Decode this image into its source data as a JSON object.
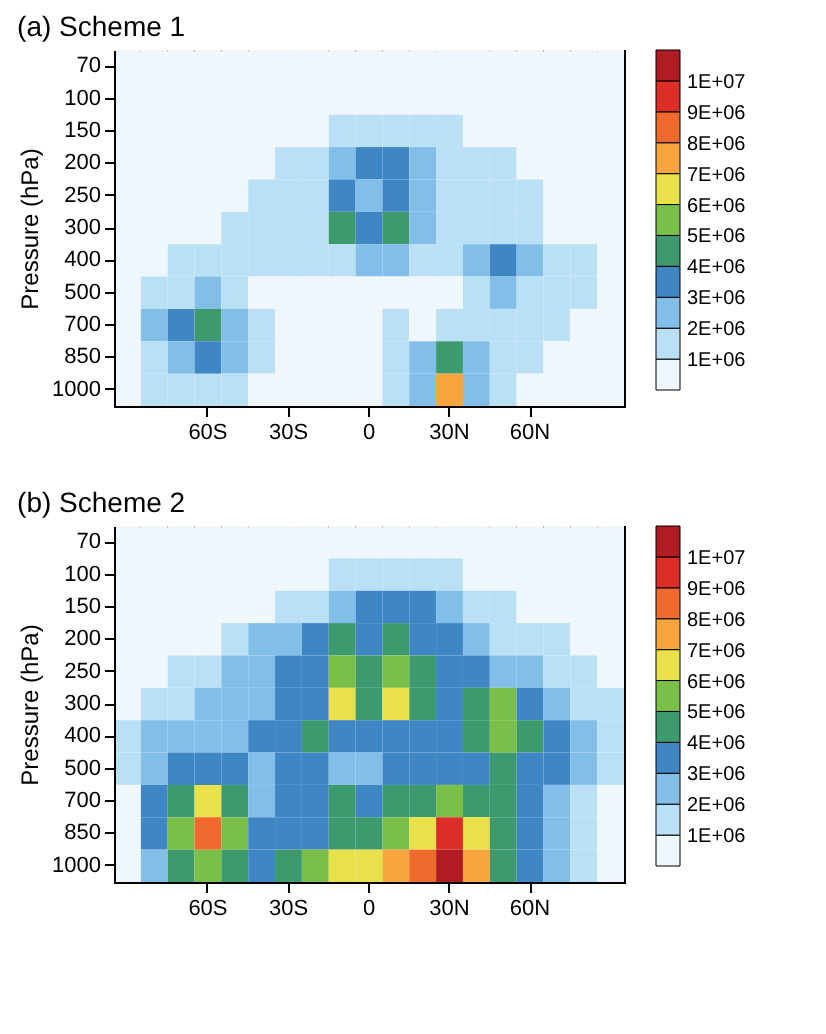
{
  "chart_data": [
    {
      "type": "heatmap",
      "title": "(a) Scheme 1",
      "ylabel": "Pressure (hPa)",
      "categories": [
        null,
        null,
        null,
        "60S",
        null,
        null,
        "30S",
        null,
        null,
        "0",
        null,
        null,
        "30N",
        null,
        null,
        "60N",
        null,
        null,
        null
      ],
      "y_categories": [
        "70",
        "100",
        "150",
        "200",
        "250",
        "300",
        "400",
        "500",
        "700",
        "850",
        "1000"
      ],
      "cells": [
        [
          500000,
          500000,
          500000,
          500000,
          500000,
          500000,
          500000,
          500000,
          500000,
          500000,
          500000,
          500000,
          500000,
          500000,
          500000,
          500000,
          500000,
          500000,
          500000
        ],
        [
          500000,
          500000,
          500000,
          500000,
          500000,
          500000,
          500000,
          500000,
          500000,
          500000,
          500000,
          500000,
          500000,
          500000,
          500000,
          500000,
          500000,
          500000,
          500000
        ],
        [
          500000,
          500000,
          500000,
          500000,
          500000,
          500000,
          500000,
          500000,
          1500000,
          1500000,
          1500000,
          1500000,
          1500000,
          500000,
          500000,
          500000,
          500000,
          500000,
          500000
        ],
        [
          500000,
          500000,
          500000,
          500000,
          500000,
          500000,
          1500000,
          1500000,
          2500000,
          3500000,
          3500000,
          2500000,
          1500000,
          1500000,
          1500000,
          500000,
          500000,
          500000,
          500000
        ],
        [
          500000,
          500000,
          500000,
          500000,
          500000,
          1500000,
          1500000,
          1500000,
          3500000,
          2500000,
          3500000,
          2500000,
          1500000,
          1500000,
          1500000,
          1500000,
          500000,
          500000,
          500000
        ],
        [
          500000,
          500000,
          500000,
          500000,
          1500000,
          1500000,
          1500000,
          1500000,
          4500000,
          3500000,
          4500000,
          2500000,
          1500000,
          1500000,
          1500000,
          1500000,
          500000,
          500000,
          500000
        ],
        [
          500000,
          500000,
          1500000,
          1500000,
          1500000,
          1500000,
          1500000,
          1500000,
          1500000,
          2500000,
          2500000,
          1500000,
          1500000,
          2500000,
          3500000,
          2500000,
          1500000,
          1500000,
          500000
        ],
        [
          500000,
          1500000,
          1500000,
          2500000,
          1500000,
          500000,
          500000,
          500000,
          500000,
          500000,
          500000,
          500000,
          500000,
          1500000,
          2500000,
          1500000,
          1500000,
          1500000,
          500000
        ],
        [
          500000,
          2500000,
          3500000,
          4500000,
          2500000,
          1500000,
          500000,
          500000,
          500000,
          500000,
          1500000,
          500000,
          1500000,
          1500000,
          1500000,
          1500000,
          1500000,
          500000,
          500000
        ],
        [
          500000,
          1500000,
          2500000,
          3500000,
          2500000,
          1500000,
          500000,
          500000,
          500000,
          500000,
          1500000,
          2500000,
          4500000,
          2500000,
          1500000,
          1500000,
          500000,
          500000,
          500000
        ],
        [
          500000,
          1500000,
          1500000,
          1500000,
          1500000,
          500000,
          500000,
          500000,
          500000,
          500000,
          1500000,
          2500000,
          7500000,
          2500000,
          1500000,
          500000,
          500000,
          500000,
          500000
        ]
      ],
      "clim": [
        0,
        11000000
      ],
      "cticks": [
        {
          "value": 1000000,
          "label": "1E+06"
        },
        {
          "value": 2000000,
          "label": "2E+06"
        },
        {
          "value": 3000000,
          "label": "3E+06"
        },
        {
          "value": 4000000,
          "label": "4E+06"
        },
        {
          "value": 5000000,
          "label": "5E+06"
        },
        {
          "value": 6000000,
          "label": "6E+06"
        },
        {
          "value": 7000000,
          "label": "7E+06"
        },
        {
          "value": 8000000,
          "label": "8E+06"
        },
        {
          "value": 9000000,
          "label": "9E+06"
        },
        {
          "value": 10000000,
          "label": "1E+07"
        }
      ],
      "colors": [
        "#f0f7fc",
        "#b9e0f4",
        "#82bfe8",
        "#3f86c5",
        "#3c9a6e",
        "#79bf48",
        "#e8e14a",
        "#f7a53c",
        "#ef6a2c",
        "#dd2d27",
        "#b01c22"
      ]
    },
    {
      "type": "heatmap",
      "title": "(b) Scheme 2",
      "ylabel": "Pressure (hPa)",
      "categories": [
        null,
        null,
        null,
        "60S",
        null,
        null,
        "30S",
        null,
        null,
        "0",
        null,
        null,
        "30N",
        null,
        null,
        "60N",
        null,
        null,
        null
      ],
      "y_categories": [
        "70",
        "100",
        "150",
        "200",
        "250",
        "300",
        "400",
        "500",
        "700",
        "850",
        "1000"
      ],
      "cells": [
        [
          500000,
          500000,
          500000,
          500000,
          500000,
          500000,
          500000,
          500000,
          500000,
          500000,
          500000,
          500000,
          500000,
          500000,
          500000,
          500000,
          500000,
          500000,
          500000
        ],
        [
          500000,
          500000,
          500000,
          500000,
          500000,
          500000,
          500000,
          500000,
          1500000,
          1500000,
          1500000,
          1500000,
          1500000,
          500000,
          500000,
          500000,
          500000,
          500000,
          500000
        ],
        [
          500000,
          500000,
          500000,
          500000,
          500000,
          500000,
          1500000,
          1500000,
          2500000,
          3500000,
          3500000,
          3500000,
          2500000,
          1500000,
          1500000,
          500000,
          500000,
          500000,
          500000
        ],
        [
          500000,
          500000,
          500000,
          500000,
          1500000,
          2500000,
          2500000,
          3500000,
          4500000,
          3500000,
          4500000,
          3500000,
          3500000,
          2500000,
          1500000,
          1500000,
          1500000,
          500000,
          500000
        ],
        [
          500000,
          500000,
          1500000,
          1500000,
          2500000,
          2500000,
          3500000,
          3500000,
          5500000,
          4500000,
          5500000,
          4500000,
          3500000,
          3500000,
          2500000,
          2500000,
          1500000,
          1500000,
          500000
        ],
        [
          500000,
          1500000,
          1500000,
          2500000,
          2500000,
          2500000,
          3500000,
          3500000,
          6500000,
          4500000,
          6500000,
          4500000,
          3500000,
          4500000,
          5500000,
          3500000,
          2500000,
          1500000,
          1500000
        ],
        [
          1500000,
          2500000,
          2500000,
          2500000,
          2500000,
          3500000,
          3500000,
          4500000,
          3500000,
          3500000,
          3500000,
          3500000,
          3500000,
          4500000,
          5500000,
          4500000,
          3500000,
          2500000,
          1500000
        ],
        [
          1500000,
          2500000,
          3500000,
          3500000,
          3500000,
          2500000,
          3500000,
          3500000,
          2500000,
          2500000,
          3500000,
          3500000,
          3500000,
          3500000,
          4500000,
          3500000,
          3500000,
          2500000,
          1500000
        ],
        [
          500000,
          3500000,
          4500000,
          6500000,
          4500000,
          2500000,
          3500000,
          3500000,
          4500000,
          3500000,
          4500000,
          4500000,
          5500000,
          4500000,
          4500000,
          3500000,
          2500000,
          1500000,
          500000
        ],
        [
          500000,
          3500000,
          5500000,
          8500000,
          5500000,
          3500000,
          3500000,
          3500000,
          4500000,
          4500000,
          5500000,
          6500000,
          9500000,
          6500000,
          4500000,
          3500000,
          2500000,
          1500000,
          500000
        ],
        [
          500000,
          2500000,
          4500000,
          5500000,
          4500000,
          3500000,
          4500000,
          5500000,
          6500000,
          6500000,
          7500000,
          8500000,
          10500000,
          7500000,
          4500000,
          3500000,
          2500000,
          1500000,
          500000
        ]
      ],
      "clim": [
        0,
        11000000
      ],
      "cticks": [
        {
          "value": 1000000,
          "label": "1E+06"
        },
        {
          "value": 2000000,
          "label": "2E+06"
        },
        {
          "value": 3000000,
          "label": "3E+06"
        },
        {
          "value": 4000000,
          "label": "4E+06"
        },
        {
          "value": 5000000,
          "label": "5E+06"
        },
        {
          "value": 6000000,
          "label": "6E+06"
        },
        {
          "value": 7000000,
          "label": "7E+06"
        },
        {
          "value": 8000000,
          "label": "8E+06"
        },
        {
          "value": 9000000,
          "label": "9E+06"
        },
        {
          "value": 10000000,
          "label": "1E+07"
        }
      ],
      "colors": [
        "#f0f7fc",
        "#b9e0f4",
        "#82bfe8",
        "#3f86c5",
        "#3c9a6e",
        "#79bf48",
        "#e8e14a",
        "#f7a53c",
        "#ef6a2c",
        "#dd2d27",
        "#b01c22"
      ]
    }
  ]
}
